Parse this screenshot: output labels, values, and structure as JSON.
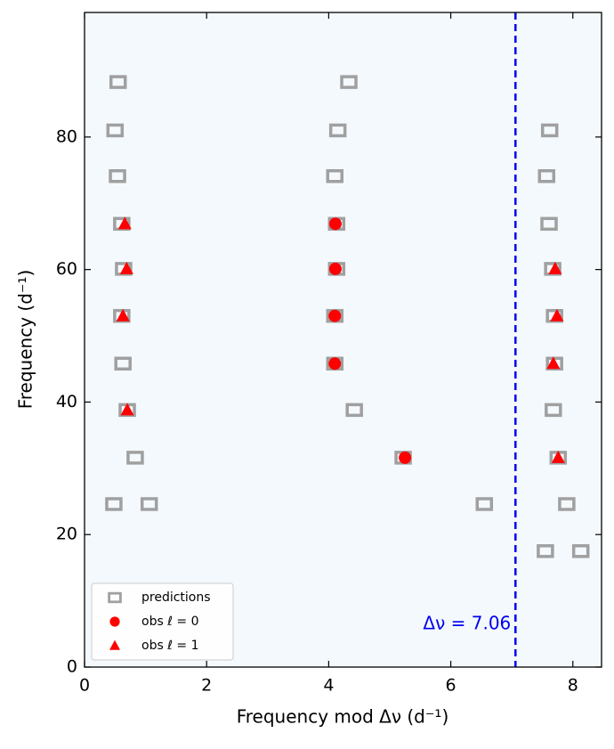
{
  "chart_data": {
    "type": "scatter",
    "xlabel": "Frequency mod Δν (d⁻¹)",
    "ylabel": "Frequency (d⁻¹)",
    "xlim": [
      0,
      8.47
    ],
    "ylim": [
      0,
      98.8
    ],
    "xticks": [
      0,
      2,
      4,
      6,
      8
    ],
    "yticks": [
      0,
      20,
      40,
      60,
      80
    ],
    "legend": "lower left",
    "annotation": {
      "value": 7.06,
      "label": "Δν = 7.06",
      "color": "#0000ee"
    },
    "series": [
      {
        "name": "predictions",
        "color": "#a0a0a0",
        "marker": "square",
        "x": [
          0.55,
          0.5,
          0.54,
          0.61,
          0.64,
          0.61,
          0.63,
          0.7,
          0.83,
          0.48,
          1.06,
          4.33,
          4.15,
          4.1,
          4.13,
          4.13,
          4.1,
          4.1,
          4.42,
          5.22,
          6.55,
          7.62,
          7.57,
          7.61,
          7.67,
          7.7,
          7.7,
          7.68,
          7.76,
          7.9,
          7.55,
          8.13
        ],
        "values": [
          88.3,
          81.0,
          74.1,
          66.9,
          60.1,
          53.0,
          45.8,
          38.8,
          31.6,
          24.6,
          24.6,
          88.3,
          81.0,
          74.1,
          66.9,
          60.1,
          53.0,
          45.8,
          38.8,
          31.6,
          24.6,
          81.0,
          74.1,
          66.9,
          60.1,
          53.0,
          45.8,
          38.8,
          31.6,
          24.6,
          17.5,
          17.5
        ]
      },
      {
        "name": "obs ℓ = 0",
        "color": "#ff0000",
        "marker": "circle",
        "x": [
          4.11,
          4.11,
          4.1,
          4.1,
          5.25
        ],
        "values": [
          66.9,
          60.1,
          53.0,
          45.8,
          31.6
        ]
      },
      {
        "name": "obs ℓ = 1",
        "color": "#ff0000",
        "marker": "triangle",
        "x": [
          0.66,
          0.69,
          0.63,
          0.7,
          7.71,
          7.74,
          7.68,
          7.76
        ],
        "values": [
          66.9,
          60.1,
          53.0,
          38.8,
          60.1,
          53.0,
          45.8,
          31.6
        ]
      }
    ]
  }
}
